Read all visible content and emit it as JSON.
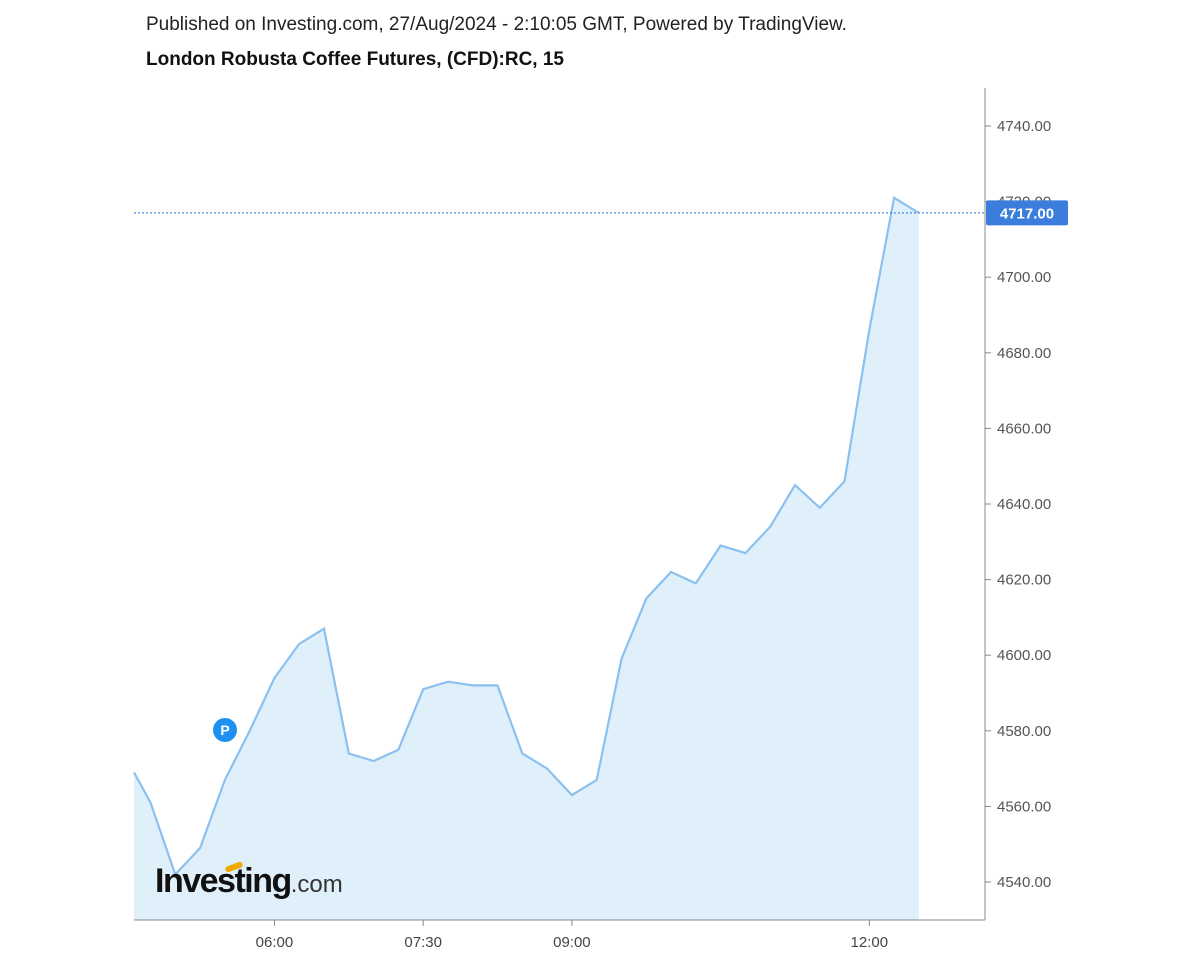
{
  "header": {
    "published": "Published on Investing.com, 27/Aug/2024 - 2:10:05 GMT, Powered by TradingView.",
    "symbol": "London Robusta Coffee Futures, (CFD):RC, 15"
  },
  "brand": {
    "main": "Investing",
    "suffix": ".com",
    "accent_color": "#f2a900"
  },
  "marker": {
    "label": "P",
    "color": "#1e90f2"
  },
  "colors": {
    "line": "#8cc0ee",
    "fill": "#e0f0fb",
    "price_tag": "#3b7ddd",
    "axis": "#888888"
  },
  "chart_data": {
    "type": "area",
    "title": "London Robusta Coffee Futures, (CFD):RC, 15",
    "xlabel": "",
    "ylabel": "",
    "x_tick_labels": [
      "06:00",
      "07:30",
      "09:00",
      "12:00"
    ],
    "x_tick_hours": [
      6.0,
      7.5,
      9.0,
      12.0
    ],
    "y_ticks": [
      4540,
      4560,
      4580,
      4600,
      4620,
      4640,
      4660,
      4680,
      4700,
      4720,
      4740
    ],
    "y_tick_labels": [
      "4540.00",
      "4560.00",
      "4580.00",
      "4600.00",
      "4620.00",
      "4640.00",
      "4660.00",
      "4680.00",
      "4700.00",
      "4720.00",
      "4740.00"
    ],
    "ylim": [
      4530,
      4750
    ],
    "xlim": [
      "04:35",
      "13:10"
    ],
    "last_price": 4717,
    "last_price_label": "4717.00",
    "grid": false,
    "series": [
      {
        "x": [
          "04:35",
          "04:45",
          "05:00",
          "05:15",
          "05:30",
          "05:45",
          "06:00",
          "06:15",
          "06:30",
          "06:45",
          "07:00",
          "07:15",
          "07:30",
          "07:45",
          "08:00",
          "08:15",
          "08:30",
          "08:45",
          "09:00",
          "09:15",
          "09:30",
          "09:45",
          "10:00",
          "10:15",
          "10:30",
          "10:45",
          "11:00",
          "11:15",
          "11:30",
          "11:45",
          "12:00",
          "12:15",
          "12:30"
        ],
        "values": [
          4569,
          4561,
          4542,
          4549,
          4567,
          4580,
          4594,
          4603,
          4607,
          4574,
          4572,
          4575,
          4591,
          4593,
          4592,
          4592,
          4574,
          4570,
          4563,
          4567,
          4599,
          4615,
          4622,
          4619,
          4629,
          4627,
          4634,
          4645,
          4639,
          4646,
          4686,
          4721,
          4717
        ]
      }
    ]
  }
}
